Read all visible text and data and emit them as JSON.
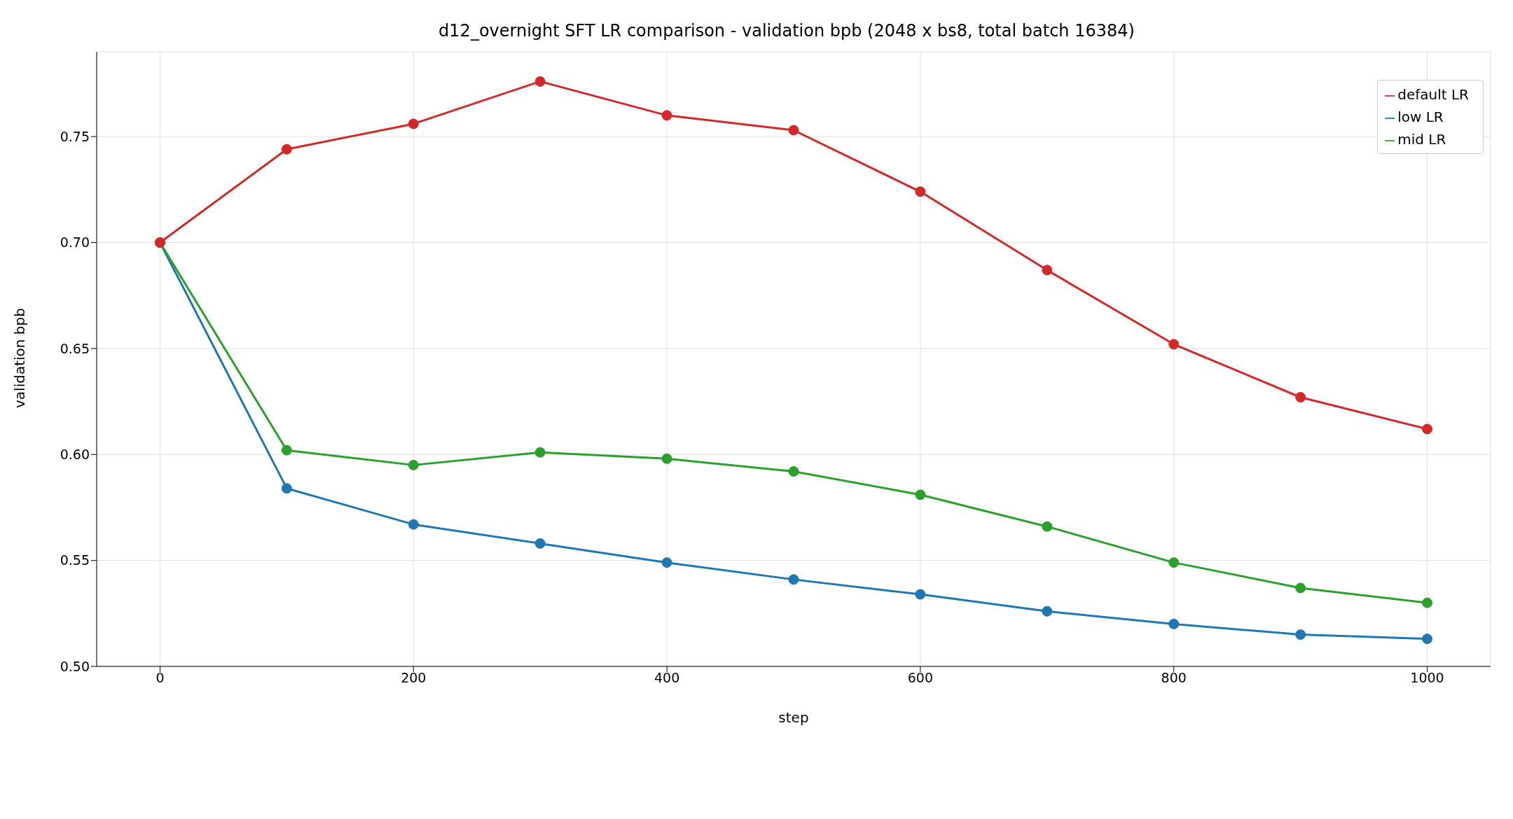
{
  "chart_data": {
    "type": "line",
    "title": "d12_overnight SFT LR comparison - validation bpb (2048 x bs8, total batch 16384)",
    "xlabel": "step",
    "ylabel": "validation bpb",
    "x": [
      0,
      100,
      200,
      300,
      400,
      500,
      600,
      700,
      800,
      900,
      1000
    ],
    "series": [
      {
        "name": "low LR",
        "color": "#1f77b4",
        "values": [
          0.7,
          0.584,
          0.567,
          0.558,
          0.549,
          0.541,
          0.534,
          0.526,
          0.52,
          0.515,
          0.513
        ]
      },
      {
        "name": "mid LR",
        "color": "#2ca02c",
        "values": [
          0.7,
          0.602,
          0.595,
          0.601,
          0.598,
          0.592,
          0.581,
          0.566,
          0.549,
          0.537,
          0.53
        ]
      },
      {
        "name": "default LR",
        "color": "#d62728",
        "values": [
          0.7,
          0.744,
          0.756,
          0.776,
          0.76,
          0.753,
          0.724,
          0.687,
          0.652,
          0.627,
          0.612
        ]
      }
    ],
    "xlim": [
      -50,
      1050
    ],
    "xticks": [
      0,
      200,
      400,
      600,
      800,
      1000
    ],
    "ylim": [
      0.5,
      0.79
    ],
    "yticks": [
      {
        "value": 0.5,
        "label": "0.50"
      },
      {
        "value": 0.55,
        "label": "0.55"
      },
      {
        "value": 0.6,
        "label": "0.60"
      },
      {
        "value": 0.65,
        "label": "0.65"
      },
      {
        "value": 0.7,
        "label": "0.70"
      },
      {
        "value": 0.75,
        "label": "0.75"
      }
    ],
    "grid": true,
    "legend": "top right",
    "marker": "circle",
    "line_style": "solid"
  }
}
